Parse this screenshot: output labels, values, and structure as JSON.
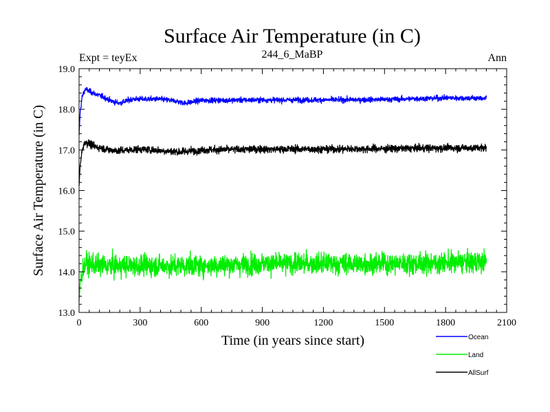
{
  "chart_data": {
    "type": "line",
    "title": "Surface Air Temperature (in C)",
    "subtitle": "244_6_MaBP",
    "left_label": "Expt = teyEx",
    "right_label": "Ann",
    "xlabel": "Time (in years since start)",
    "ylabel": "Surface Air Temperature (in C)",
    "xlim": [
      0,
      2100
    ],
    "ylim": [
      13.0,
      19.0
    ],
    "x_ticks": [
      0,
      300,
      600,
      900,
      1200,
      1500,
      1800,
      2100
    ],
    "y_ticks": [
      13.0,
      14.0,
      15.0,
      16.0,
      17.0,
      18.0,
      19.0
    ],
    "x_tick_labels": [
      "0",
      "300",
      "600",
      "900",
      "1200",
      "1500",
      "1800",
      "2100"
    ],
    "y_tick_labels": [
      "13.0",
      "14.0",
      "15.0",
      "16.0",
      "17.0",
      "18.0",
      "19.0"
    ],
    "x_end": 2000,
    "series": [
      {
        "name": "Ocean",
        "color": "#0000ff",
        "noise": 0.05,
        "values_at": [
          [
            0,
            17.35
          ],
          [
            5,
            17.9
          ],
          [
            15,
            18.3
          ],
          [
            30,
            18.5
          ],
          [
            60,
            18.42
          ],
          [
            120,
            18.3
          ],
          [
            160,
            18.2
          ],
          [
            200,
            18.15
          ],
          [
            260,
            18.25
          ],
          [
            400,
            18.25
          ],
          [
            480,
            18.2
          ],
          [
            520,
            18.15
          ],
          [
            600,
            18.22
          ],
          [
            900,
            18.23
          ],
          [
            1200,
            18.23
          ],
          [
            1500,
            18.24
          ],
          [
            1800,
            18.28
          ],
          [
            2000,
            18.27
          ]
        ]
      },
      {
        "name": "Land",
        "color": "#00ee00",
        "noise": 0.2,
        "values_at": [
          [
            0,
            13.25
          ],
          [
            5,
            13.7
          ],
          [
            15,
            14.0
          ],
          [
            30,
            14.2
          ],
          [
            100,
            14.15
          ],
          [
            600,
            14.15
          ],
          [
            900,
            14.2
          ],
          [
            1200,
            14.2
          ],
          [
            1500,
            14.2
          ],
          [
            1800,
            14.22
          ],
          [
            2000,
            14.25
          ]
        ]
      },
      {
        "name": "AllSurf",
        "color": "#000000",
        "noise": 0.07,
        "values_at": [
          [
            0,
            16.1
          ],
          [
            5,
            16.6
          ],
          [
            15,
            17.0
          ],
          [
            30,
            17.2
          ],
          [
            80,
            17.08
          ],
          [
            150,
            17.0
          ],
          [
            200,
            16.98
          ],
          [
            300,
            17.02
          ],
          [
            500,
            16.95
          ],
          [
            600,
            17.0
          ],
          [
            900,
            17.02
          ],
          [
            1200,
            17.02
          ],
          [
            1500,
            17.03
          ],
          [
            1800,
            17.05
          ],
          [
            2000,
            17.05
          ]
        ]
      }
    ]
  }
}
